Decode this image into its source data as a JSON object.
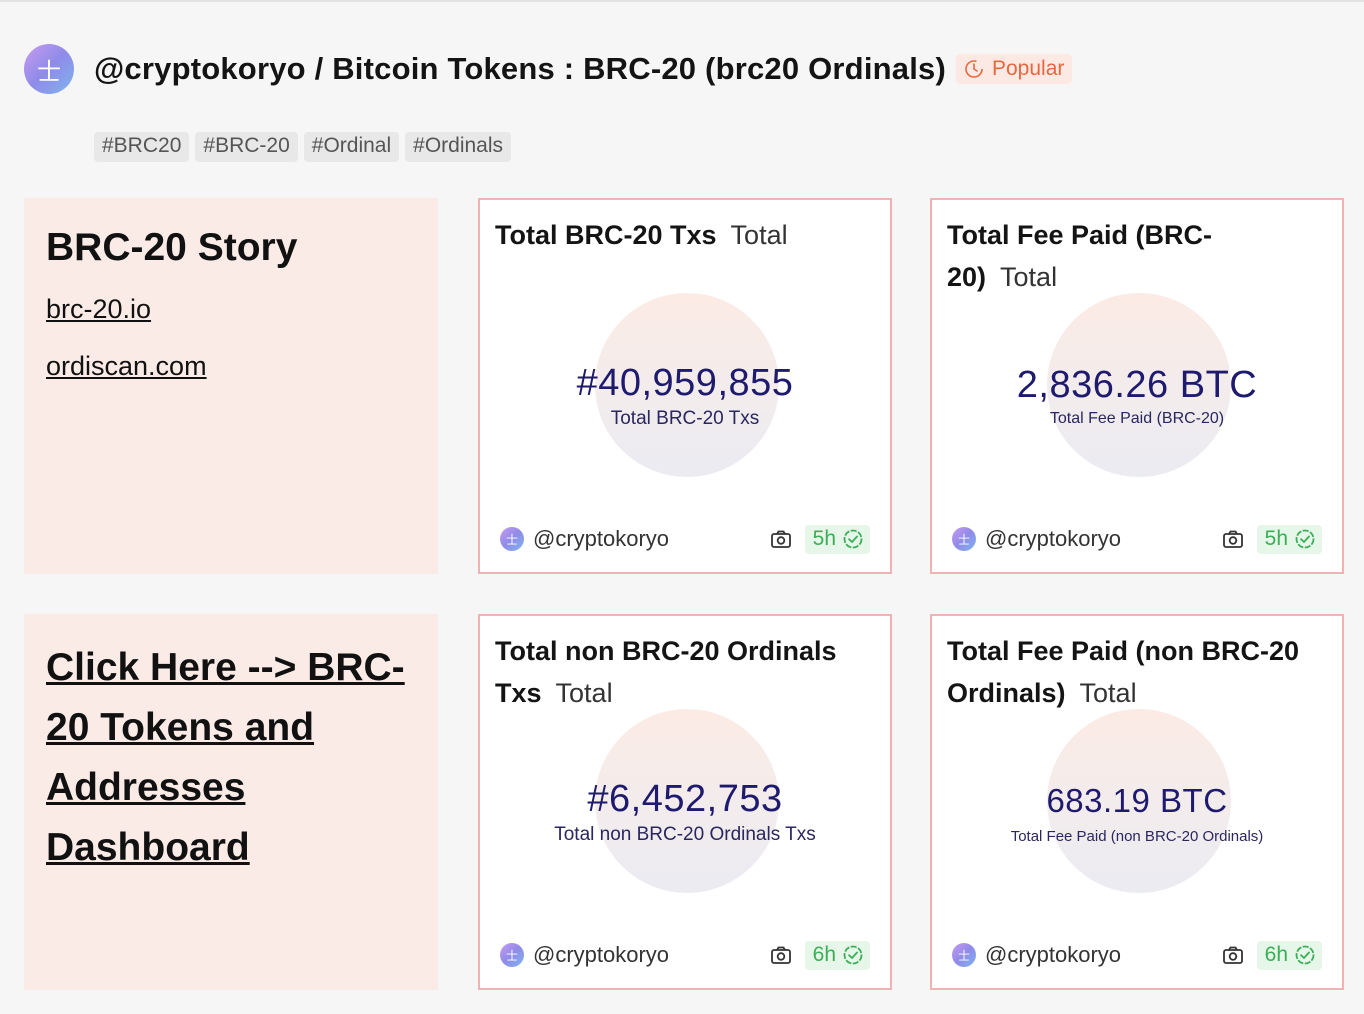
{
  "header": {
    "avatar_glyph": "士",
    "title": "@cryptokoryo / Bitcoin Tokens : BRC-20 (brc20 Ordinals)",
    "badge": "Popular"
  },
  "tags": [
    "#BRC20",
    "#BRC-20",
    "#Ordinal",
    "#Ordinals"
  ],
  "story": {
    "title": "BRC-20 Story",
    "links": [
      "brc-20.io",
      "ordiscan.com"
    ]
  },
  "dashboard_link": {
    "lines": [
      "Click Here --> BRC-",
      "20 Tokens and",
      "Addresses",
      "Dashboard"
    ]
  },
  "cards": [
    {
      "title": "Total BRC-20 Txs",
      "subtitle": "Total",
      "value": "#40,959,855",
      "label": "Total BRC-20 Txs",
      "author": "@cryptokoryo",
      "age": "5h"
    },
    {
      "title": "Total Fee Paid (BRC-20)",
      "subtitle": "Total",
      "value": "2,836.26 BTC",
      "label": "Total Fee Paid (BRC-20)",
      "author": "@cryptokoryo",
      "age": "5h"
    },
    {
      "title": "Total non BRC-20 Ordinals Txs",
      "subtitle": "Total",
      "value": "#6,452,753",
      "label": "Total non BRC-20 Ordinals Txs",
      "author": "@cryptokoryo",
      "age": "6h"
    },
    {
      "title": "Total Fee Paid (non BRC-20 Ordinals)",
      "subtitle": "Total",
      "value": "683.19 BTC",
      "label": "Total Fee Paid (non BRC-20 Ordinals)",
      "author": "@cryptokoryo",
      "age": "6h"
    }
  ],
  "colors": {
    "accent_popular": "#e8673e",
    "card_border": "#f0b3b3",
    "value_text": "#1e1a6e",
    "age_badge_text": "#3cae58",
    "text_card_bg": "#fbebe7"
  },
  "icons": [
    "clock-icon",
    "camera-icon",
    "verified-check-icon"
  ]
}
